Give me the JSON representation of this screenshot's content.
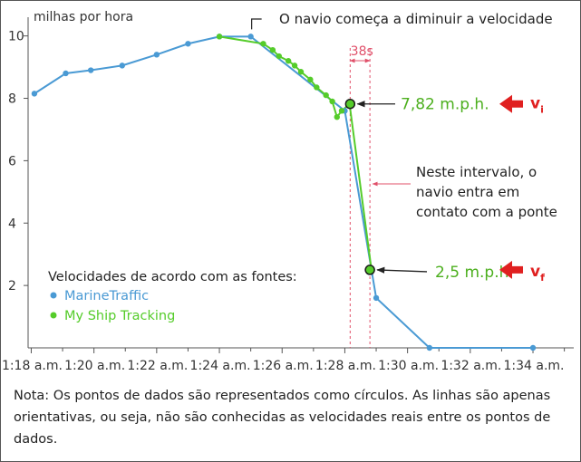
{
  "chart_data": {
    "type": "line",
    "ylabel": "milhas por hora",
    "xlabel": "",
    "ylim": [
      0,
      10.6
    ],
    "yticks": [
      2,
      4,
      6,
      8,
      10
    ],
    "x_tick_minutes": [
      18,
      20,
      22,
      24,
      26,
      28,
      30,
      32,
      34
    ],
    "x_tick_labels": [
      "1:18 a.m.",
      "1:20 a.m.",
      "1:22 a.m.",
      "1:24 a.m.",
      "1:26 a.m.",
      "1:28 a.m.",
      "1:30 a.m.",
      "1:32 a.m.",
      "1:34 a.m."
    ],
    "x_range_minutes": [
      17.9,
      35.3
    ],
    "legend": {
      "title": "Velocidades de acordo com as fontes:",
      "placement": "bottom-left"
    },
    "series": [
      {
        "name": "MarineTraffic",
        "color": "#4a9ad4",
        "points": [
          [
            18.1,
            8.15
          ],
          [
            19.1,
            8.8
          ],
          [
            19.9,
            8.9
          ],
          [
            20.9,
            9.05
          ],
          [
            22.0,
            9.4
          ],
          [
            23.0,
            9.75
          ],
          [
            24.0,
            9.98
          ],
          [
            25.0,
            9.98
          ],
          [
            28.0,
            7.6
          ],
          [
            29.0,
            1.6
          ],
          [
            30.7,
            0.0
          ],
          [
            34.0,
            0.0
          ]
        ]
      },
      {
        "name": "My Ship Tracking",
        "color": "#55cc2a",
        "points": [
          [
            24.0,
            9.98
          ],
          [
            25.4,
            9.75
          ],
          [
            25.7,
            9.55
          ],
          [
            25.9,
            9.35
          ],
          [
            26.2,
            9.2
          ],
          [
            26.4,
            9.05
          ],
          [
            26.6,
            8.85
          ],
          [
            26.9,
            8.6
          ],
          [
            27.1,
            8.35
          ],
          [
            27.4,
            8.1
          ],
          [
            27.6,
            7.9
          ],
          [
            27.75,
            7.4
          ],
          [
            27.9,
            7.6
          ],
          [
            28.15,
            7.82
          ],
          [
            28.85,
            2.5
          ]
        ]
      }
    ],
    "annotations": {
      "slowdown": "O navio começa a diminuir a velocidade",
      "interval_label": "38s",
      "interval_minutes": [
        28.17,
        28.8
      ],
      "interval_note": [
        "Neste intervalo, o",
        "navio entra em",
        "contato com a ponte"
      ],
      "vi_value": "7,82 m.p.h.",
      "vi_point": [
        28.17,
        7.82
      ],
      "vi_symbol": "v",
      "vi_sub": "i",
      "vf_value": "2,5 m.p.h.",
      "vf_point": [
        28.8,
        2.5
      ],
      "vf_symbol": "v",
      "vf_sub": "f"
    }
  },
  "note": "Nota: Os pontos de dados são representados como círculos. As linhas são apenas orientativas, ou seja, não são conhecidas as velocidades reais entre os pontos de dados.",
  "colors": {
    "interval": "#e0506a",
    "arrow": "#e02020",
    "value_text": "#4caf1e"
  }
}
